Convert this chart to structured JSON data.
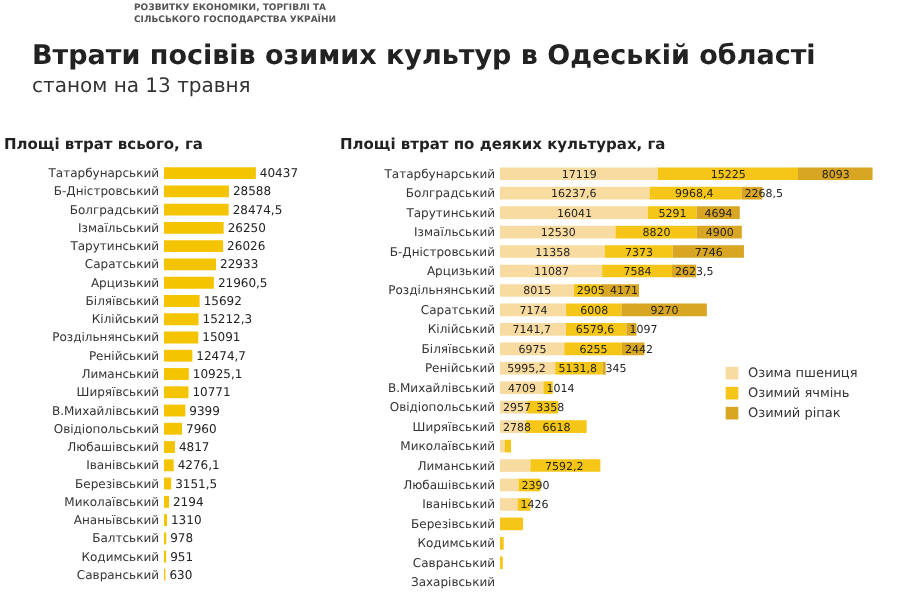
{
  "chart_data": [
    {
      "type": "other",
      "title": "Втрати посівів озимих культур в Одеській області",
      "subtitle": "станом на 13 травня",
      "annotations": [
        "РОЗВИТКУ ЕКОНОМІКИ, ТОРГІВЛІ ТА",
        "СІЛЬСЬКОГО ГОСПОДАРСТВА УКРАЇНИ"
      ]
    },
    {
      "type": "bar",
      "orientation": "horizontal",
      "title": "Площі втрат всього, га",
      "categories": [
        "Татарбунарський",
        "Б-Дністровський",
        "Болградський",
        "Ізмаїльський",
        "Тарутинський",
        "Саратський",
        "Арцизький",
        "Біляївський",
        "Кілійський",
        "Роздільнянський",
        "Ренійський",
        "Лиманський",
        "Ширяївський",
        "В.Михайлівський",
        "Овідіопольський",
        "Любашівський",
        "Іванівський",
        "Березівський",
        "Миколаївський",
        "Ананьївський",
        "Балтський",
        "Кодимський",
        "Савранський"
      ],
      "series": [
        {
          "color": "#f5c400",
          "values": [
            40437,
            28588,
            28474.5,
            26250,
            26026,
            22933,
            21960.5,
            15692,
            15212.3,
            15091,
            12474.7,
            10925.1,
            10771,
            9399,
            7960,
            4817,
            4276.1,
            3151.5,
            2194,
            1310,
            978,
            951,
            630
          ],
          "value_labels": [
            "40437",
            "28588",
            "28474,5",
            "26250",
            "26026",
            "22933",
            "21960,5",
            "15692",
            "15212,3",
            "15091",
            "12474,7",
            "10925,1",
            "10771",
            "9399",
            "7960",
            "4817",
            "4276,1",
            "3151,5",
            "2194",
            "1310",
            "978",
            "951",
            "630"
          ]
        }
      ]
    },
    {
      "type": "bar",
      "orientation": "horizontal",
      "stacked": true,
      "title": "Площі втрат по деяких культурах, га",
      "legend": "right",
      "categories": [
        "Татарбунарський",
        "Болградський",
        "Тарутинський",
        "Ізмаїльський",
        "Б-Дністровський",
        "Арцизький",
        "Роздільнянський",
        "Саратський",
        "Кілійський",
        "Біляївський",
        "Ренійський",
        "В.Михайлівський",
        "Овідіопольський",
        "Ширяївський",
        "Миколаївський",
        "Лиманський",
        "Любашівський",
        "Іванівський",
        "Березівський",
        "Кодимський",
        "Савранський",
        "Захарівський"
      ],
      "series": [
        {
          "name": "Озима пшениця",
          "color": "#f8dba0",
          "values": [
            17119,
            16237.6,
            16041,
            12530,
            11358,
            11087,
            8015,
            7174,
            7141.7,
            6975,
            5995.2,
            4709,
            2957,
            2788,
            500,
            3300,
            2000,
            1900,
            null,
            null,
            null,
            null
          ],
          "value_labels": [
            "17119",
            "16237,6",
            "16041",
            "12530",
            "11358",
            "11087",
            "8015",
            "7174",
            "7141,7",
            "6975",
            "5995,2",
            "4709",
            "2957",
            "2788",
            null,
            null,
            null,
            null,
            null,
            null,
            null,
            null
          ]
        },
        {
          "name": "Озимий ячмінь",
          "color": "#f5c518",
          "values": [
            15225,
            9968.4,
            5291,
            8820,
            7373,
            7584,
            2905,
            6008,
            6579.6,
            6255,
            5131.8,
            1014,
            3358,
            6618,
            700,
            7592.2,
            2390,
            1426,
            2500,
            400,
            300,
            null
          ],
          "value_labels": [
            "15225",
            "9968,4",
            "5291",
            "8820",
            "7373",
            "7584",
            "2905",
            "6008",
            "6579,6",
            "6255",
            "5131,8",
            "1014",
            "3358",
            "6618",
            null,
            "7592,2",
            "2390",
            "1426",
            null,
            null,
            null,
            null
          ]
        },
        {
          "name": "Озимий ріпак",
          "color": "#d9a624",
          "values": [
            8093,
            2268.5,
            4694,
            4900,
            7746,
            2623.5,
            4171,
            9270,
            1097,
            2442,
            345,
            null,
            null,
            null,
            null,
            null,
            null,
            null,
            null,
            null,
            null,
            null
          ],
          "value_labels": [
            "8093",
            "2268,5",
            "4694",
            "4900",
            "7746",
            "2623,5",
            "4171",
            "9270",
            "1097",
            "2442",
            "345",
            null,
            null,
            null,
            null,
            null,
            null,
            null,
            null,
            null,
            null,
            null
          ]
        }
      ]
    }
  ]
}
